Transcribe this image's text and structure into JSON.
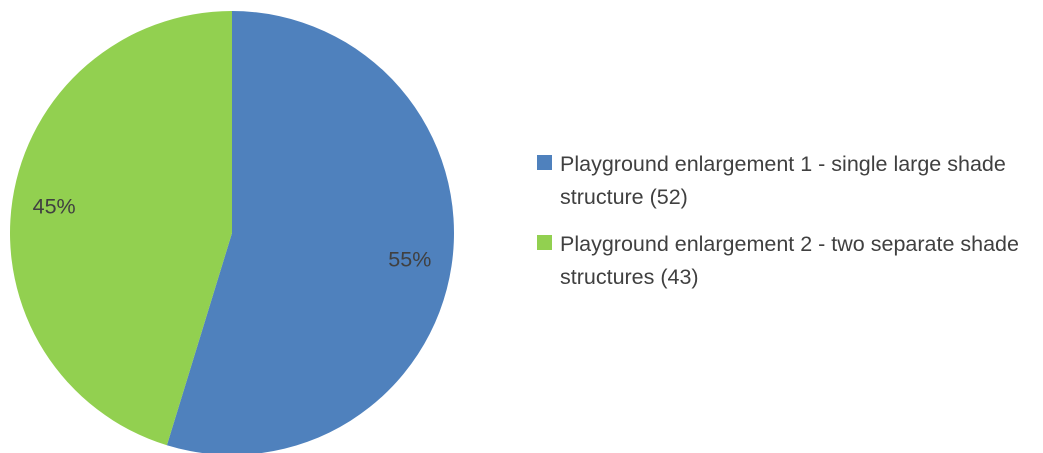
{
  "chart_data": {
    "type": "pie",
    "slices": [
      {
        "legend": "Playground enlargement 1 - single large shade structure (52)",
        "value": 52,
        "percent_label": "55%",
        "color": "#4f81bd"
      },
      {
        "legend": "Playground enlargement 2 - two separate shade structures (43)",
        "value": 43,
        "percent_label": "45%",
        "color": "#92d050"
      }
    ],
    "legend_position": "right"
  }
}
